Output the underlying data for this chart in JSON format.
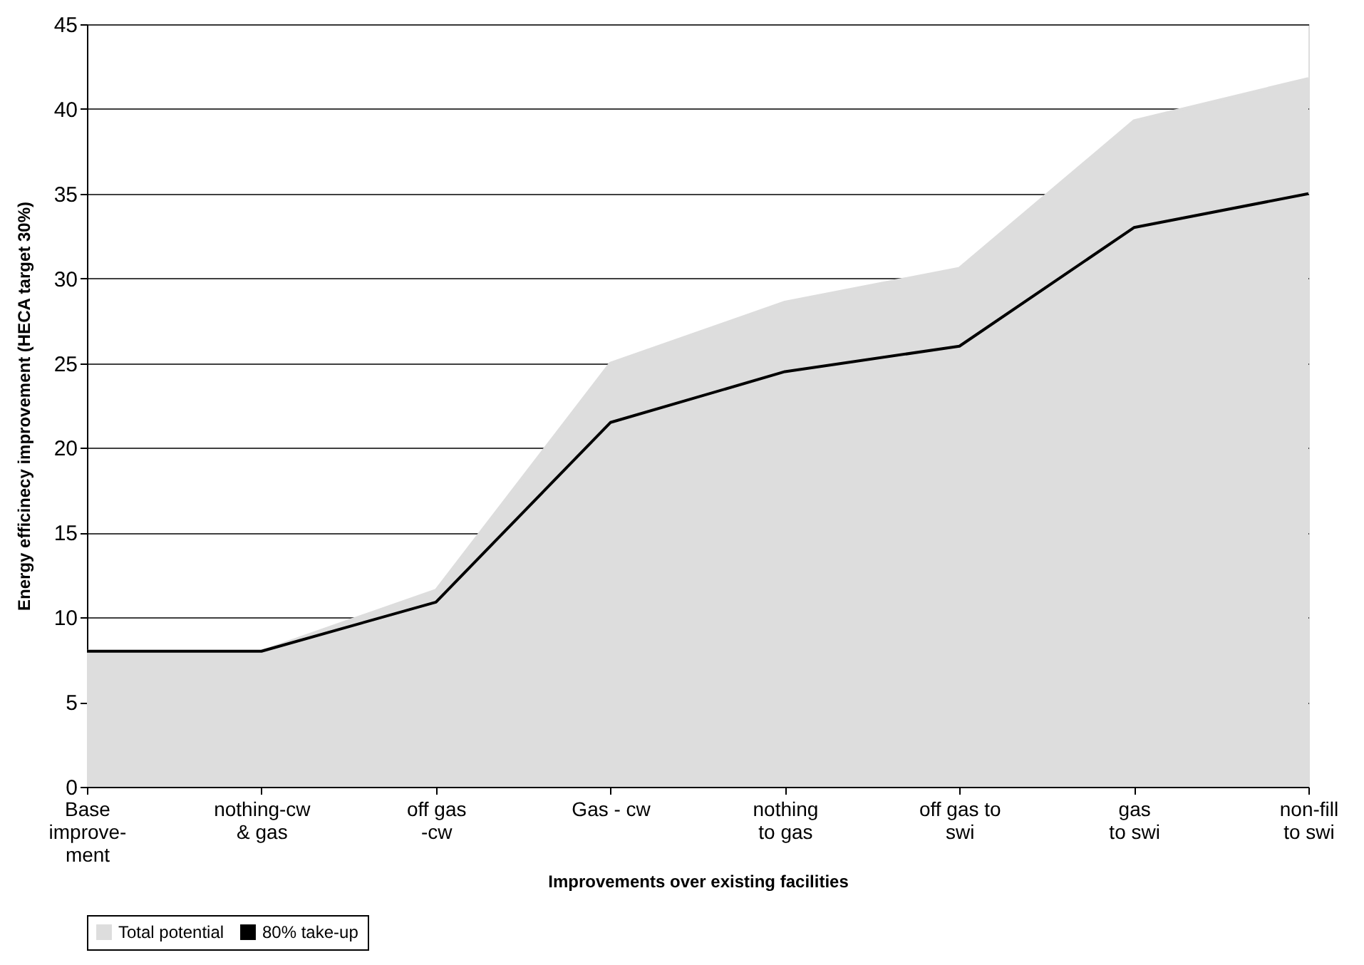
{
  "chart_data": {
    "type": "area",
    "xlabel": "Improvements over existing facilities",
    "ylabel": "Energy efficinecy improvement (HECA target 30%)",
    "categories": [
      "Base\nimprove-\nment",
      "nothing-cw\n& gas",
      "off gas\n-cw",
      "Gas - cw",
      "nothing\nto gas",
      "off gas to\nswi",
      "gas\nto swi",
      "non-fill\nto swi"
    ],
    "series": [
      {
        "name": "Total potential",
        "color": "#dddddd",
        "values": [
          8,
          8,
          11.6,
          25,
          28.6,
          30.6,
          39.3,
          41.8
        ]
      },
      {
        "name": "80% take-up",
        "type": "line",
        "color": "#000000",
        "values": [
          8,
          8,
          10.9,
          21.5,
          24.5,
          26,
          33,
          35
        ]
      }
    ],
    "ylim": [
      0,
      45
    ],
    "yticks": [
      0,
      5,
      10,
      15,
      20,
      25,
      30,
      35,
      40,
      45
    ],
    "grid": "y",
    "legend": "bottom",
    "line_style": "solid",
    "marker": "none"
  }
}
